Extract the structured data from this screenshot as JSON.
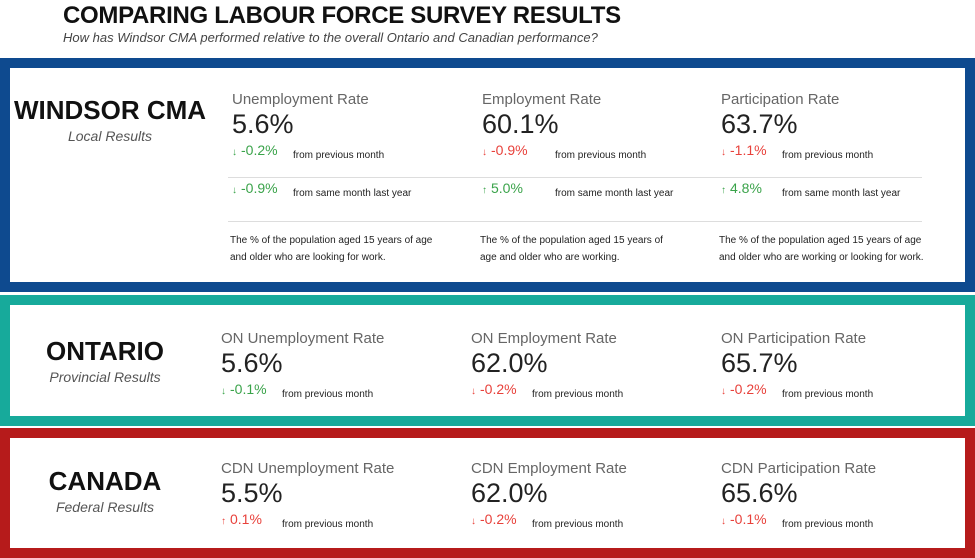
{
  "header": {
    "title": "COMPARING LABOUR FORCE SURVEY RESULTS",
    "subtitle": "How has Windsor CMA performed relative to the overall Ontario and Canadian performance?"
  },
  "colors": {
    "windsor": "#0e4a8f",
    "ontario": "#17aa9b",
    "canada": "#b61b1b",
    "positive": "#3aa34a",
    "negative": "#e8413b"
  },
  "windsor": {
    "name": "WINDSOR CMA",
    "sub": "Local Results",
    "metrics": [
      {
        "label": "Unemployment Rate",
        "value": "5.6%",
        "month": "-0.2%",
        "month_dir": "down",
        "month_color": "green",
        "year": "-0.9%",
        "year_dir": "down",
        "year_color": "green",
        "desc1": "The % of the population aged 15 years of age",
        "desc2": "and older who are looking for work."
      },
      {
        "label": "Employment Rate",
        "value": "60.1%",
        "month": "-0.9%",
        "month_dir": "down",
        "month_color": "red",
        "year": "5.0%",
        "year_dir": "up",
        "year_color": "green",
        "desc1": "The % of the population aged 15 years of",
        "desc2": "age and older who are working."
      },
      {
        "label": "Participation Rate",
        "value": "63.7%",
        "month": "-1.1%",
        "month_dir": "down",
        "month_color": "red",
        "year": "4.8%",
        "year_dir": "up",
        "year_color": "green",
        "desc1": "The % of the population aged 15 years of age",
        "desc2": "and older who are working or looking for work."
      }
    ]
  },
  "ontario": {
    "name": "ONTARIO",
    "sub": "Provincial Results",
    "metrics": [
      {
        "label": "ON Unemployment Rate",
        "value": "5.6%",
        "month": "-0.1%"
      },
      {
        "label": "ON Employment Rate",
        "value": "62.0%",
        "month": "-0.2%"
      },
      {
        "label": "ON Participation Rate",
        "value": "65.7%",
        "month": "-0.2%"
      }
    ]
  },
  "canada": {
    "name": "CANADA",
    "sub": "Federal Results",
    "metrics": [
      {
        "label": "CDN Unemployment Rate",
        "value": "5.5%",
        "month": "0.1%"
      },
      {
        "label": "CDN Employment Rate",
        "value": "62.0%",
        "month": "-0.2%"
      },
      {
        "label": "CDN Participation Rate",
        "value": "65.6%",
        "month": "-0.1%"
      }
    ]
  },
  "text": {
    "from_prev": "from previous month",
    "from_year": "from same month last year"
  },
  "icons": {
    "up": "↑",
    "down": "↓"
  }
}
